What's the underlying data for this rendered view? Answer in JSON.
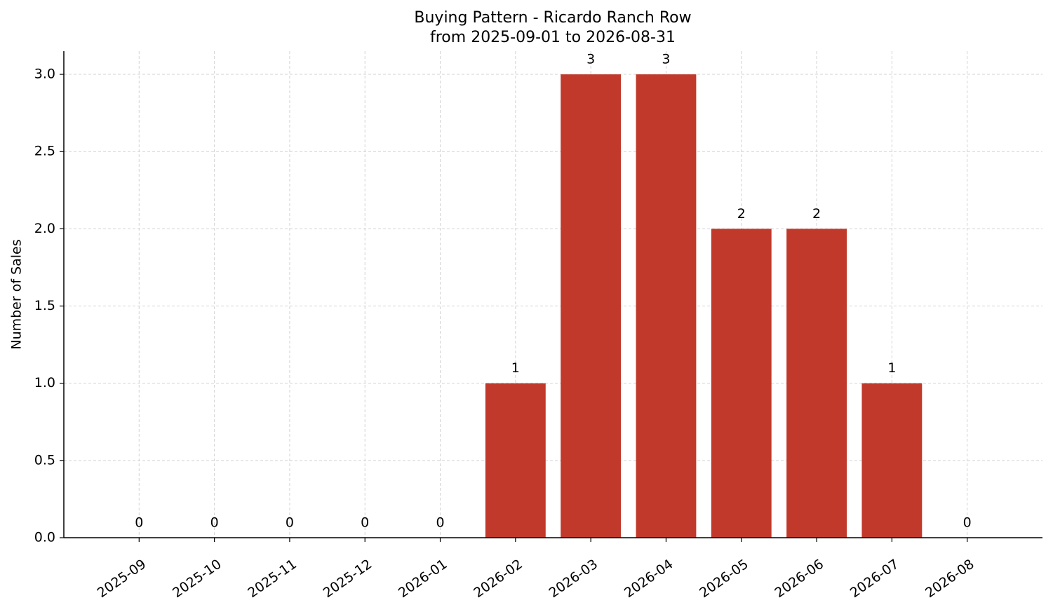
{
  "chart_data": {
    "type": "bar",
    "title": "Buying Pattern - Ricardo Ranch Row",
    "subtitle": "from 2025-09-01 to 2026-08-31",
    "y_label": "Number of Sales",
    "categories": [
      "2025-09",
      "2025-10",
      "2025-11",
      "2025-12",
      "2026-01",
      "2026-02",
      "2026-03",
      "2026-04",
      "2026-05",
      "2026-06",
      "2026-07",
      "2026-08"
    ],
    "values": [
      0,
      0,
      0,
      0,
      0,
      1,
      3,
      3,
      2,
      2,
      1,
      0
    ],
    "color": "#c0392b",
    "ylim": [
      0,
      3.15
    ],
    "yticks": [
      {
        "value": 0,
        "label": "0.0"
      },
      0.5,
      {
        "value": 1,
        "label": "1.0"
      },
      1.5,
      {
        "value": 2,
        "label": "2.0"
      },
      2.5,
      {
        "value": 3,
        "label": "3.0"
      }
    ],
    "grid": true
  }
}
